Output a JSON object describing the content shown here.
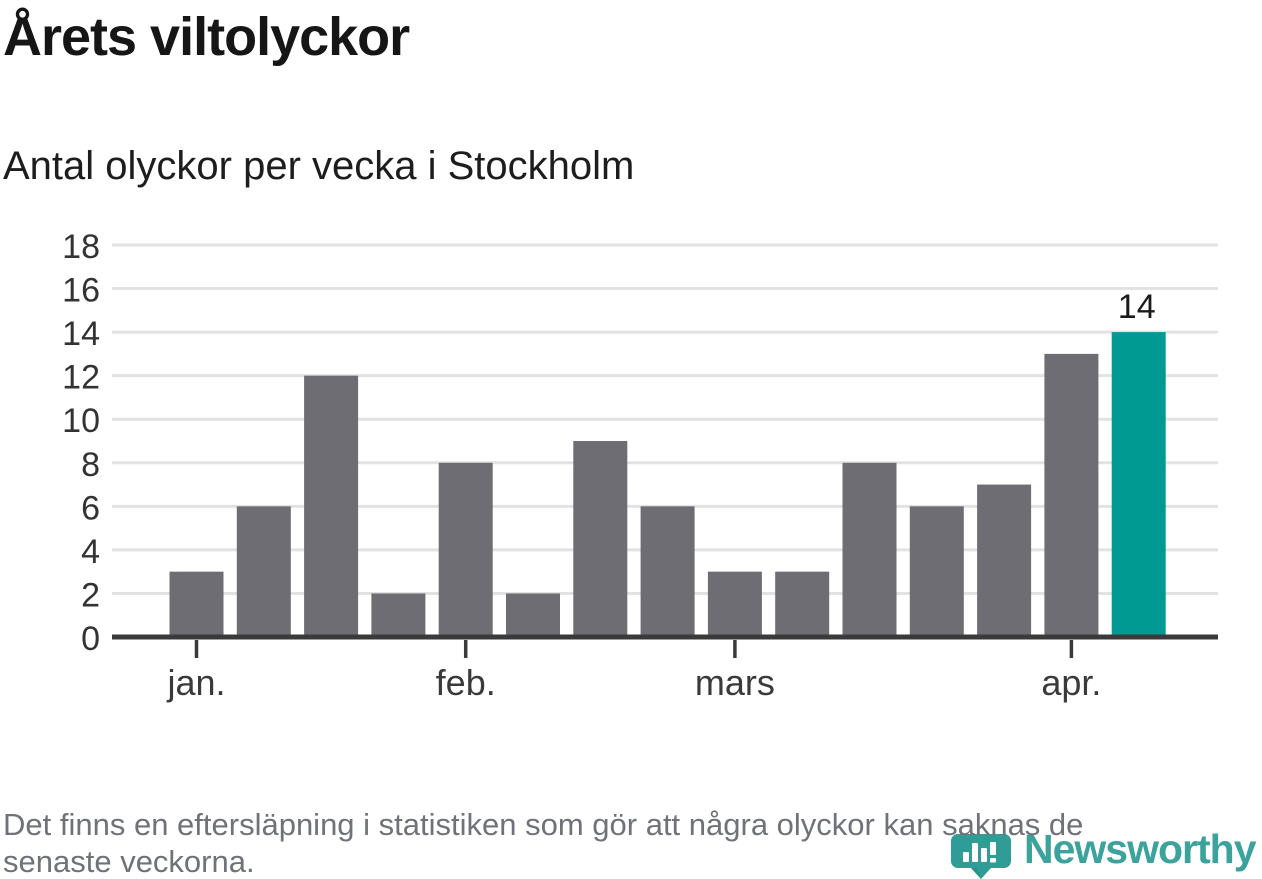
{
  "header": {
    "title": "Årets viltolyckor",
    "subtitle": "Antal olyckor per vecka i Stockholm"
  },
  "chart_data": {
    "type": "bar",
    "title": "Årets viltolyckor",
    "subtitle": "Antal olyckor per vecka i Stockholm",
    "values": [
      3,
      6,
      12,
      2,
      8,
      2,
      9,
      6,
      3,
      3,
      8,
      6,
      7,
      13,
      14
    ],
    "x_ticks": [
      {
        "label": "jan.",
        "bar_index": 0
      },
      {
        "label": "feb.",
        "bar_index": 4
      },
      {
        "label": "mars",
        "bar_index": 8
      },
      {
        "label": "apr.",
        "bar_index": 13
      }
    ],
    "y_ticks": [
      0,
      2,
      4,
      6,
      8,
      10,
      12,
      14,
      16,
      18
    ],
    "ylim": [
      0,
      18
    ],
    "grid": true,
    "legend": "none",
    "highlight_index": 14,
    "highlight_value_label": "14",
    "colors": {
      "bar": "#6e6d73",
      "highlight": "#009a93",
      "grid": "#e2e2e2",
      "axis": "#3a3a3a",
      "tick_text": "#333333",
      "value_label": "#1a1a1a"
    }
  },
  "footer": {
    "note_lines": [
      "Det finns en eftersläpning i statistiken som gör att några olyckor kan saknas de",
      "senaste veckorna."
    ],
    "brand": "Newsworthy",
    "brand_color": "#3ba39c"
  }
}
